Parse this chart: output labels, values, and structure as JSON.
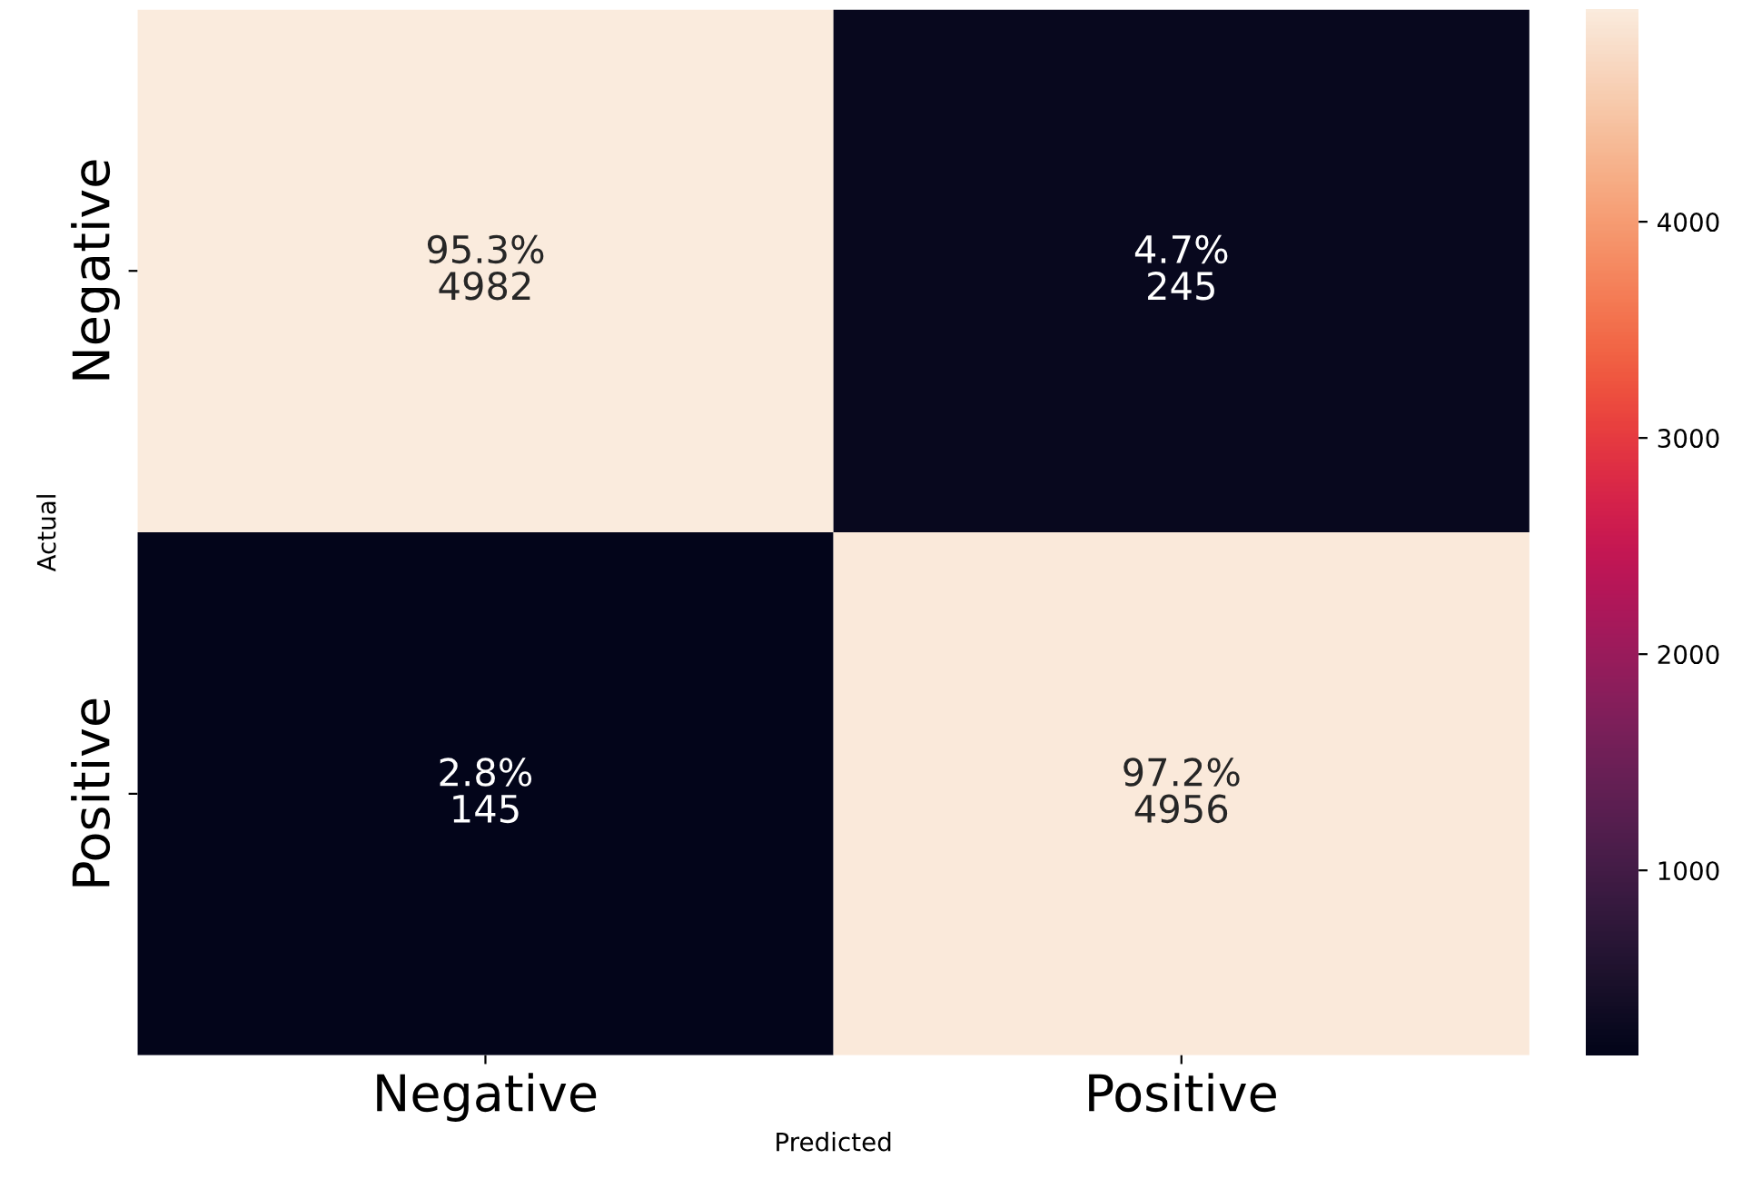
{
  "chart_data": {
    "type": "heatmap",
    "xlabel": "Predicted",
    "ylabel": "Actual",
    "categories": [
      "Negative",
      "Positive"
    ],
    "y_categories": [
      "Negative",
      "Positive"
    ],
    "cells": [
      [
        4982,
        245
      ],
      [
        145,
        4956
      ]
    ],
    "cell_labels": [
      [
        "95.3%\n4982",
        "4.7%\n245"
      ],
      [
        "2.8%\n145",
        "97.2%\n4956"
      ]
    ],
    "clim": [
      145,
      4982
    ],
    "cticks": [
      1000,
      2000,
      3000,
      4000
    ]
  }
}
